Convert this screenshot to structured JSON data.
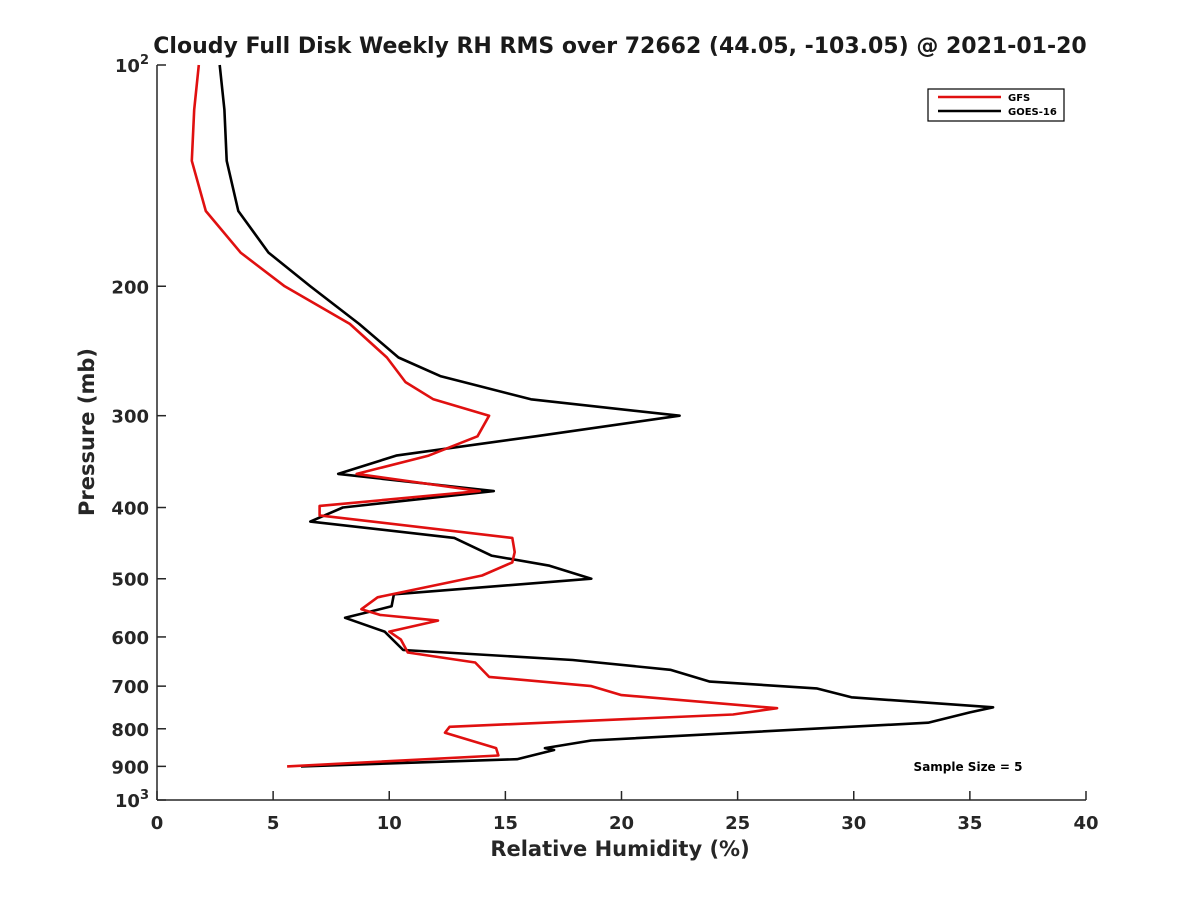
{
  "chart_data": {
    "type": "line",
    "title": "Cloudy Full Disk Weekly RH RMS over 72662 (44.05, -103.05) @ 2021-01-20",
    "xlabel": "Relative Humidity (%)",
    "ylabel": "Pressure (mb)",
    "xlim": [
      0,
      40
    ],
    "ylim": [
      100,
      1000
    ],
    "y_scale": "log",
    "y_inverted": true,
    "grid": false,
    "legend_position": "top-right",
    "x_ticks": [
      "0",
      "5",
      "10",
      "15",
      "20",
      "25",
      "30",
      "35",
      "40"
    ],
    "y_ticks": [
      {
        "value": 100,
        "base": "10",
        "exp": "2"
      },
      {
        "value": 200,
        "label": "200"
      },
      {
        "value": 300,
        "label": "300"
      },
      {
        "value": 400,
        "label": "400"
      },
      {
        "value": 500,
        "label": "500"
      },
      {
        "value": 600,
        "label": "600"
      },
      {
        "value": 700,
        "label": "700"
      },
      {
        "value": 800,
        "label": "800"
      },
      {
        "value": 900,
        "label": "900"
      },
      {
        "value": 1000,
        "base": "10",
        "exp": "3"
      }
    ],
    "annotation": "Sample Size = 5",
    "series": [
      {
        "name": "GFS",
        "color": "#e01010",
        "points": [
          [
            1.8,
            100
          ],
          [
            1.6,
            115
          ],
          [
            1.5,
            135
          ],
          [
            2.1,
            158
          ],
          [
            3.6,
            180
          ],
          [
            5.5,
            200
          ],
          [
            8.3,
            225
          ],
          [
            9.9,
            250
          ],
          [
            10.7,
            270
          ],
          [
            11.9,
            285
          ],
          [
            14.3,
            300
          ],
          [
            13.8,
            320
          ],
          [
            11.7,
            340
          ],
          [
            8.6,
            360
          ],
          [
            13.9,
            380
          ],
          [
            7.0,
            398
          ],
          [
            7.0,
            410
          ],
          [
            15.3,
            440
          ],
          [
            15.4,
            460
          ],
          [
            15.3,
            475
          ],
          [
            14.0,
            495
          ],
          [
            9.5,
            530
          ],
          [
            8.8,
            550
          ],
          [
            9.6,
            560
          ],
          [
            12.1,
            570
          ],
          [
            10.0,
            590
          ],
          [
            10.5,
            605
          ],
          [
            10.8,
            630
          ],
          [
            13.7,
            650
          ],
          [
            14.3,
            680
          ],
          [
            18.7,
            700
          ],
          [
            20.0,
            720
          ],
          [
            26.7,
            750
          ],
          [
            24.8,
            765
          ],
          [
            12.6,
            795
          ],
          [
            12.4,
            810
          ],
          [
            14.6,
            850
          ],
          [
            14.7,
            870
          ],
          [
            5.6,
            900
          ]
        ]
      },
      {
        "name": "GOES-16",
        "color": "#000000",
        "points": [
          [
            2.7,
            100
          ],
          [
            2.9,
            115
          ],
          [
            3.0,
            135
          ],
          [
            3.5,
            158
          ],
          [
            4.8,
            180
          ],
          [
            6.6,
            200
          ],
          [
            8.7,
            225
          ],
          [
            10.4,
            250
          ],
          [
            12.2,
            265
          ],
          [
            16.1,
            285
          ],
          [
            22.5,
            300
          ],
          [
            16.3,
            320
          ],
          [
            10.3,
            340
          ],
          [
            7.8,
            360
          ],
          [
            14.5,
            380
          ],
          [
            8.0,
            400
          ],
          [
            6.6,
            418
          ],
          [
            12.8,
            440
          ],
          [
            14.4,
            465
          ],
          [
            16.9,
            480
          ],
          [
            18.7,
            500
          ],
          [
            10.2,
            525
          ],
          [
            10.1,
            545
          ],
          [
            8.1,
            565
          ],
          [
            9.8,
            590
          ],
          [
            10.6,
            625
          ],
          [
            17.9,
            645
          ],
          [
            22.1,
            665
          ],
          [
            23.8,
            690
          ],
          [
            28.4,
            705
          ],
          [
            29.9,
            725
          ],
          [
            36.0,
            748
          ],
          [
            35.0,
            760
          ],
          [
            33.2,
            785
          ],
          [
            18.7,
            830
          ],
          [
            16.7,
            850
          ],
          [
            17.1,
            855
          ],
          [
            15.5,
            880
          ],
          [
            6.2,
            900
          ]
        ]
      }
    ]
  }
}
